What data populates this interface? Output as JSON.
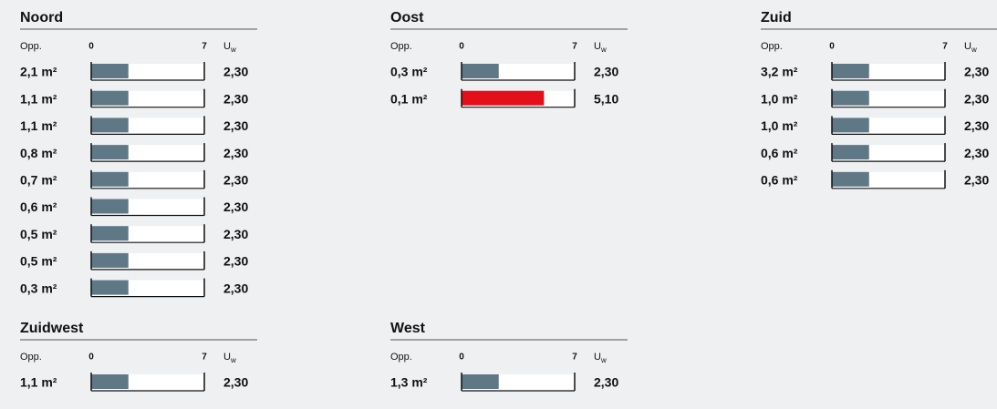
{
  "chart_data": [
    {
      "type": "bar",
      "title": "Noord",
      "category_label": "Opp.",
      "value_symbol": "U",
      "value_subscript": "w",
      "categories": [
        "2,1 m²",
        "1,1 m²",
        "1,1 m²",
        "0,8 m²",
        "0,7 m²",
        "0,6 m²",
        "0,5 m²",
        "0,5 m²",
        "0,3 m²"
      ],
      "values": [
        2.3,
        2.3,
        2.3,
        2.3,
        2.3,
        2.3,
        2.3,
        2.3,
        2.3
      ],
      "value_labels": [
        "2,30",
        "2,30",
        "2,30",
        "2,30",
        "2,30",
        "2,30",
        "2,30",
        "2,30",
        "2,30"
      ],
      "colors": [
        "#5f7886",
        "#5f7886",
        "#5f7886",
        "#5f7886",
        "#5f7886",
        "#5f7886",
        "#5f7886",
        "#5f7886",
        "#5f7886"
      ],
      "xlim": [
        0,
        7
      ],
      "xticks": [
        0,
        7
      ]
    },
    {
      "type": "bar",
      "title": "Oost",
      "category_label": "Opp.",
      "value_symbol": "U",
      "value_subscript": "w",
      "categories": [
        "0,3 m²",
        "0,1 m²"
      ],
      "values": [
        2.3,
        5.1
      ],
      "value_labels": [
        "2,30",
        "5,10"
      ],
      "colors": [
        "#5f7886",
        "#e3101b"
      ],
      "xlim": [
        0,
        7
      ],
      "xticks": [
        0,
        7
      ]
    },
    {
      "type": "bar",
      "title": "Zuid",
      "category_label": "Opp.",
      "value_symbol": "U",
      "value_subscript": "w",
      "categories": [
        "3,2 m²",
        "1,0 m²",
        "1,0 m²",
        "0,6 m²",
        "0,6 m²"
      ],
      "values": [
        2.3,
        2.3,
        2.3,
        2.3,
        2.3
      ],
      "value_labels": [
        "2,30",
        "2,30",
        "2,30",
        "2,30",
        "2,30"
      ],
      "colors": [
        "#5f7886",
        "#5f7886",
        "#5f7886",
        "#5f7886",
        "#5f7886"
      ],
      "xlim": [
        0,
        7
      ],
      "xticks": [
        0,
        7
      ]
    },
    {
      "type": "bar",
      "title": "Zuidwest",
      "category_label": "Opp.",
      "value_symbol": "U",
      "value_subscript": "w",
      "categories": [
        "1,1 m²"
      ],
      "values": [
        2.3
      ],
      "value_labels": [
        "2,30"
      ],
      "colors": [
        "#5f7886"
      ],
      "xlim": [
        0,
        7
      ],
      "xticks": [
        0,
        7
      ]
    },
    {
      "type": "bar",
      "title": "West",
      "category_label": "Opp.",
      "value_symbol": "U",
      "value_subscript": "w",
      "categories": [
        "1,3 m²"
      ],
      "values": [
        2.3
      ],
      "value_labels": [
        "2,30"
      ],
      "colors": [
        "#5f7886"
      ],
      "xlim": [
        0,
        7
      ],
      "xticks": [
        0,
        7
      ]
    }
  ]
}
